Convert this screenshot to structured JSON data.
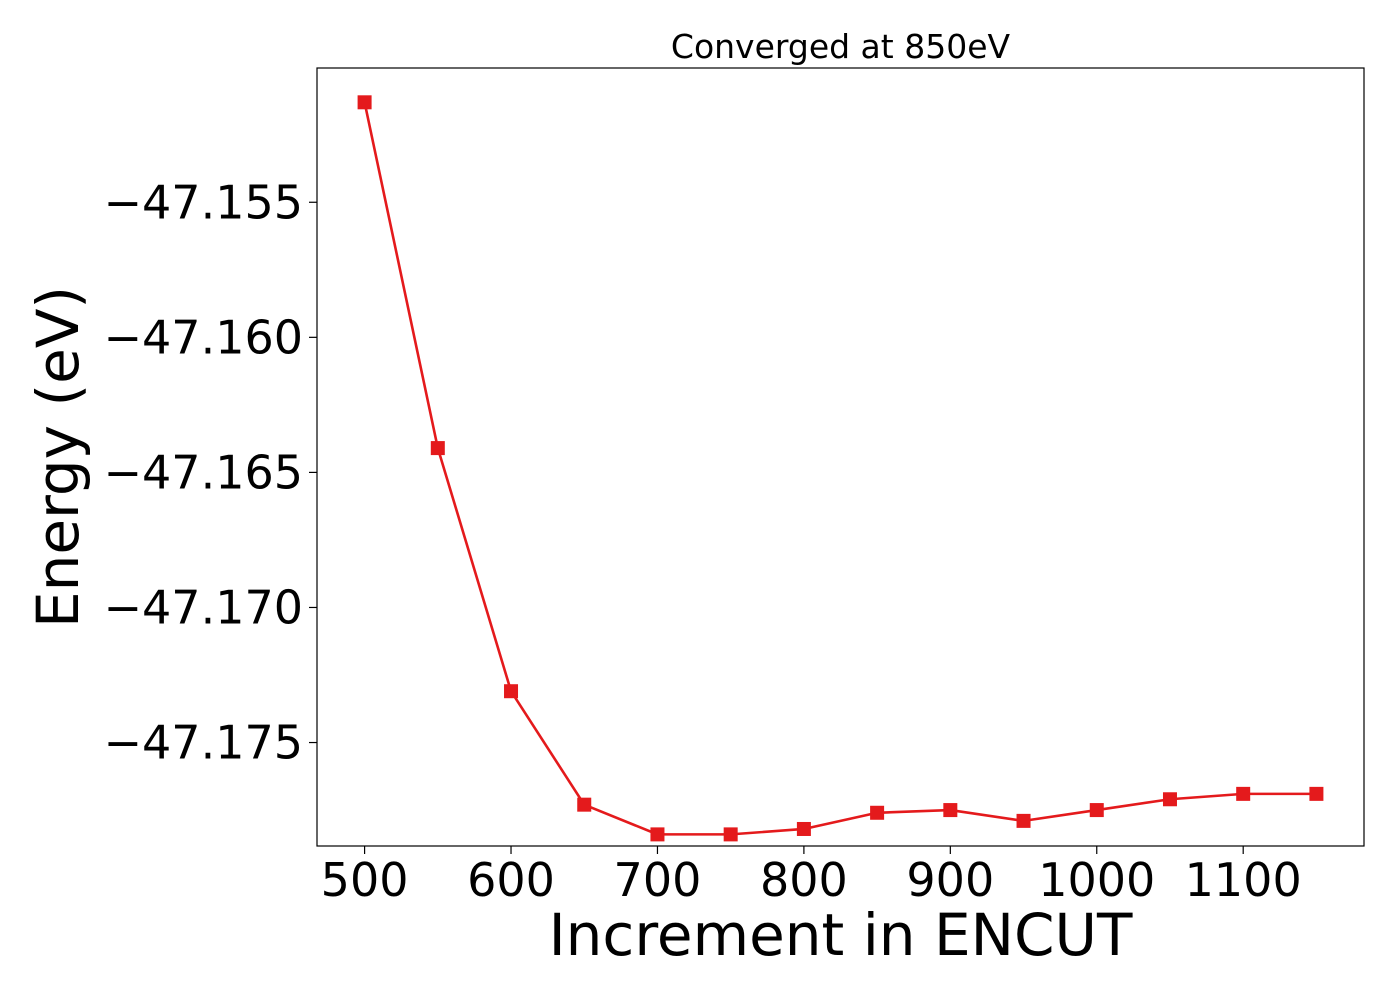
{
  "chart_data": {
    "type": "line",
    "title": "Converged at 850eV",
    "xlabel": "Increment in ENCUT",
    "ylabel": "Energy (eV)",
    "x": [
      500,
      550,
      600,
      650,
      700,
      750,
      800,
      850,
      900,
      950,
      1000,
      1050,
      1100,
      1150
    ],
    "series": [
      {
        "values": [
          -47.1513,
          -47.1641,
          -47.1731,
          -47.1773,
          -47.1784,
          -47.1784,
          -47.1782,
          -47.1776,
          -47.1775,
          -47.1779,
          -47.1775,
          -47.1771,
          -47.1769,
          -47.1769
        ],
        "color": "#e41a1c",
        "marker": "square"
      }
    ],
    "xlim": [
      467.5,
      1182.5
    ],
    "ylim": [
      -47.17883,
      -47.15003
    ],
    "xticks": [
      500,
      600,
      700,
      800,
      900,
      1000,
      1100
    ],
    "xtick_labels": [
      "500",
      "600",
      "700",
      "800",
      "900",
      "1000",
      "1100"
    ],
    "yticks": [
      -47.155,
      -47.16,
      -47.165,
      -47.17,
      -47.175
    ],
    "ytick_labels": [
      "−47.155",
      "−47.160",
      "−47.165",
      "−47.170",
      "−47.175"
    ],
    "grid": false,
    "legend": "none"
  }
}
